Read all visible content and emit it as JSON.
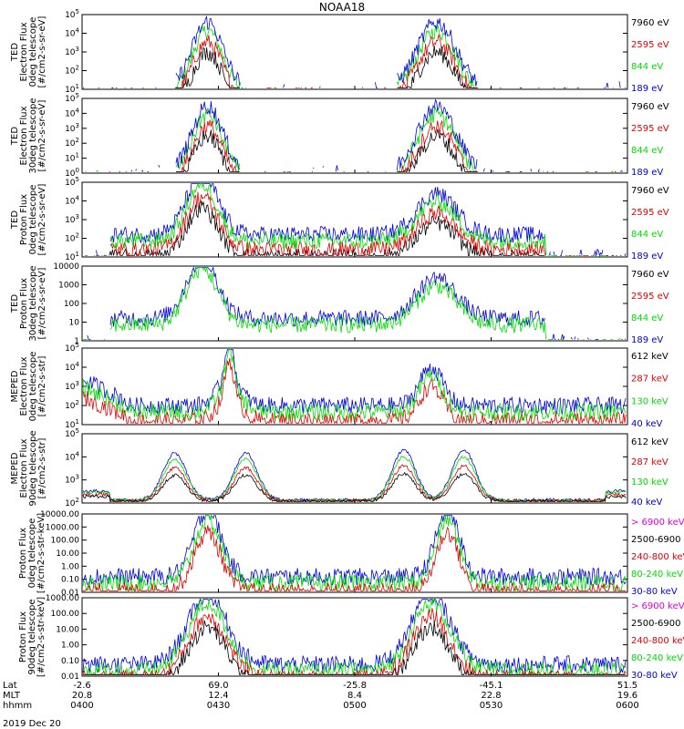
{
  "title": "NOAA18",
  "date": "2019 Dec 20",
  "colors": {
    "black": "#000000",
    "red": "#e00000",
    "green": "#00dd00",
    "blue": "#0000dd",
    "magenta": "#dd00dd"
  },
  "time_axis": {
    "rows": [
      {
        "label": "Lat",
        "values": [
          "-2.6",
          "69.0",
          "-25.8",
          "-45.1",
          "51.5"
        ]
      },
      {
        "label": "MLT",
        "values": [
          "20.8",
          "12.4",
          "8.4",
          "22.8",
          "19.6"
        ]
      },
      {
        "label": "hhmm",
        "values": [
          "0400",
          "0430",
          "0500",
          "0530",
          "0600"
        ]
      }
    ]
  },
  "chart_data": [
    {
      "type": "line",
      "ylabel": [
        "TED",
        "Electron Flux",
        "0deg telescope",
        "[#/cm2-s-sr-eV]"
      ],
      "yscale": "log",
      "ytick_labels": [
        "10^1",
        "10^2",
        "10^3",
        "10^4",
        "10^5"
      ],
      "legend": [
        {
          "text": "7960 eV",
          "color": "black"
        },
        {
          "text": "2595 eV",
          "color": "red"
        },
        {
          "text": "844 eV",
          "color": "green"
        },
        {
          "text": "189 eV",
          "color": "blue"
        }
      ]
    },
    {
      "type": "line",
      "ylabel": [
        "TED",
        "Electron Flux",
        "30deg telescope",
        "[#/cm2-s-sr-eV]"
      ],
      "yscale": "log",
      "ytick_labels": [
        "10^0",
        "10^1",
        "10^2",
        "10^3",
        "10^4",
        "10^5"
      ],
      "legend": [
        {
          "text": "7960 eV",
          "color": "black"
        },
        {
          "text": "2595 eV",
          "color": "red"
        },
        {
          "text": "844 eV",
          "color": "green"
        },
        {
          "text": "189 eV",
          "color": "blue"
        }
      ]
    },
    {
      "type": "line",
      "ylabel": [
        "TED",
        "Proton Flux",
        "0deg telescope",
        "[#/cm2-s-sr-eV]"
      ],
      "yscale": "log",
      "ytick_labels": [
        "10^1",
        "10^2",
        "10^3",
        "10^4",
        "10^5"
      ],
      "legend": [
        {
          "text": "7960 eV",
          "color": "black"
        },
        {
          "text": "2595 eV",
          "color": "red"
        },
        {
          "text": "844 eV",
          "color": "green"
        },
        {
          "text": "189 eV",
          "color": "blue"
        }
      ]
    },
    {
      "type": "line",
      "ylabel": [
        "TED",
        "Proton Flux",
        "30deg telescope",
        "[#/cm2-s-sr-eV]"
      ],
      "yscale": "log",
      "ytick_labels": [
        "1",
        "10",
        "100",
        "1000",
        "10000"
      ],
      "legend": [
        {
          "text": "7960 eV",
          "color": "black"
        },
        {
          "text": "2595 eV",
          "color": "red"
        },
        {
          "text": "844 eV",
          "color": "green"
        },
        {
          "text": "189 eV",
          "color": "blue"
        }
      ]
    },
    {
      "type": "line",
      "ylabel": [
        "MEPED",
        "Electron Flux",
        "0deg telescope",
        "[#/cm2-s-str]"
      ],
      "yscale": "log",
      "ytick_labels": [
        "10^1",
        "10^2",
        "10^3",
        "10^4",
        "10^5"
      ],
      "legend": [
        {
          "text": "612 keV",
          "color": "black"
        },
        {
          "text": "287 keV",
          "color": "red"
        },
        {
          "text": "130 keV",
          "color": "green"
        },
        {
          "text": "40 keV",
          "color": "blue"
        }
      ]
    },
    {
      "type": "line",
      "ylabel": [
        "MEPED",
        "Electron Flux",
        "90deg telescope",
        "[#/cm2-s-str]"
      ],
      "yscale": "log",
      "ytick_labels": [
        "10^2",
        "10^3",
        "10^4",
        "10^5"
      ],
      "legend": [
        {
          "text": "612 keV",
          "color": "black"
        },
        {
          "text": "287 keV",
          "color": "red"
        },
        {
          "text": "130 keV",
          "color": "green"
        },
        {
          "text": "40 keV",
          "color": "blue"
        }
      ]
    },
    {
      "type": "line",
      "ylabel": [
        "Proton Flux",
        "0deg telescope",
        "[#/cm2-s-str-keV]"
      ],
      "yscale": "log",
      "ytick_labels": [
        "0.01",
        "0.10",
        "1.00",
        "10.00",
        "100.00",
        "1000.00",
        "10000.00"
      ],
      "legend": [
        {
          "text": "> 6900 keV",
          "color": "magenta"
        },
        {
          "text": "2500-6900",
          "color": "black"
        },
        {
          "text": "240-800 keV",
          "color": "red"
        },
        {
          "text": "80-240 keV",
          "color": "green"
        },
        {
          "text": "30-80 keV",
          "color": "blue"
        }
      ]
    },
    {
      "type": "line",
      "ylabel": [
        "Proton Flux",
        "90deg telescope",
        "[#/cm2-s-str-keV]"
      ],
      "yscale": "log",
      "ytick_labels": [
        "0.01",
        "0.10",
        "1.00",
        "10.00",
        "100.00",
        "1000.00"
      ],
      "legend": [
        {
          "text": "> 6900 keV",
          "color": "magenta"
        },
        {
          "text": "2500-6900",
          "color": "black"
        },
        {
          "text": "240-800 keV",
          "color": "red"
        },
        {
          "text": "80-240 keV",
          "color": "green"
        },
        {
          "text": "30-80 keV",
          "color": "blue"
        }
      ]
    }
  ]
}
